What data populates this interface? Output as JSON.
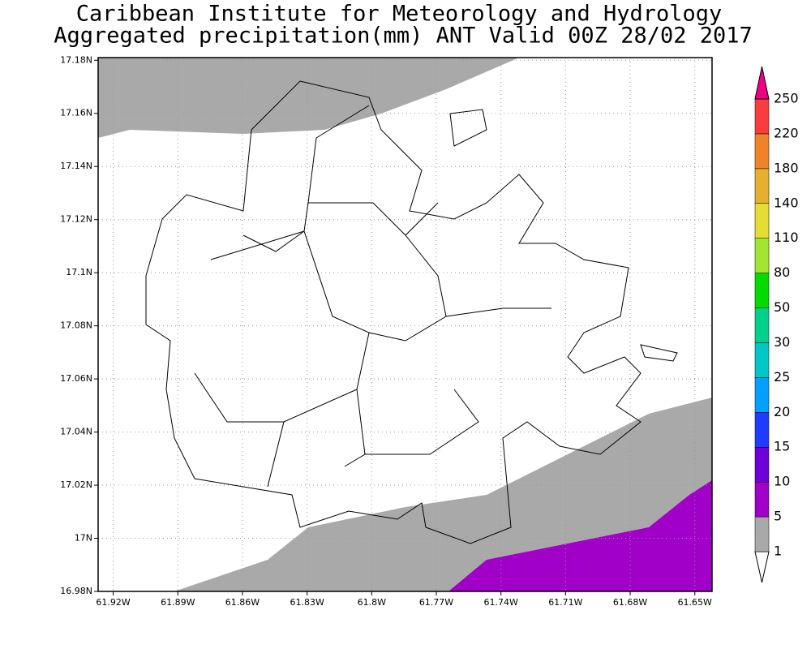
{
  "header": {
    "title": "Caribbean Institute for Meteorology and Hydrology",
    "subtitle": "Aggregated precipitation(mm) ANT Valid 00Z 28/02 2017"
  },
  "map": {
    "lonlim": [
      -61.927,
      -61.642
    ],
    "latlim": [
      16.98,
      17.181
    ],
    "grid": true,
    "lon_ticks": [
      {
        "value": -61.92,
        "label": "61.92W"
      },
      {
        "value": -61.89,
        "label": "61.89W"
      },
      {
        "value": -61.86,
        "label": "61.86W"
      },
      {
        "value": -61.83,
        "label": "61.83W"
      },
      {
        "value": -61.8,
        "label": "61.8W"
      },
      {
        "value": -61.77,
        "label": "61.77W"
      },
      {
        "value": -61.74,
        "label": "61.74W"
      },
      {
        "value": -61.71,
        "label": "61.71W"
      },
      {
        "value": -61.68,
        "label": "61.68W"
      },
      {
        "value": -61.65,
        "label": "61.65W"
      }
    ],
    "lat_ticks": [
      {
        "value": 17.18,
        "label": "17.18N"
      },
      {
        "value": 17.16,
        "label": "17.16N"
      },
      {
        "value": 17.14,
        "label": "17.14N"
      },
      {
        "value": 17.12,
        "label": "17.12N"
      },
      {
        "value": 17.1,
        "label": "17.1N"
      },
      {
        "value": 17.08,
        "label": "17.08N"
      },
      {
        "value": 17.06,
        "label": "17.06N"
      },
      {
        "value": 17.04,
        "label": "17.04N"
      },
      {
        "value": 17.02,
        "label": "17.02N"
      },
      {
        "value": 17,
        "label": "17N"
      },
      {
        "value": 16.98,
        "label": "16.98N"
      }
    ],
    "colorbar": {
      "levels": [
        1,
        5,
        10,
        15,
        20,
        25,
        30,
        50,
        80,
        110,
        140,
        180,
        220,
        250
      ],
      "colors": [
        "#ffffff",
        "#a9a9a9",
        "#a000c8",
        "#6e00dc",
        "#1e3cff",
        "#00a0ff",
        "#00c8c8",
        "#00d28c",
        "#00dc00",
        "#a0e632",
        "#e6dc32",
        "#e6af2d",
        "#f08228",
        "#fa3c3c",
        "#f00082"
      ]
    }
  }
}
